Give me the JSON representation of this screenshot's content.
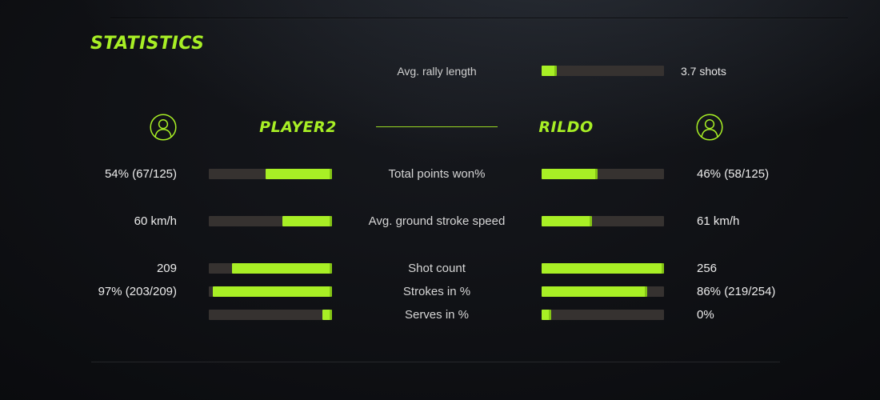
{
  "colors": {
    "accent": "#a8ef25",
    "bar_track": "#363230",
    "bar_fill": "#a8ef25",
    "bar_fill_cap": "#84c415",
    "background": "#0b0c0f"
  },
  "title": "STATISTICS",
  "rally": {
    "label": "Avg. rally length",
    "value": "3.7 shots",
    "fill_pct": 12.5
  },
  "players": {
    "left": {
      "name": "PLAYER2",
      "avatar": "person-circle-icon"
    },
    "right": {
      "name": "RILDO",
      "avatar": "person-circle-icon"
    }
  },
  "rows": [
    {
      "label": "Total points won%",
      "left_value": "54% (67/125)",
      "left_fill": 54,
      "right_value": "46% (58/125)",
      "right_fill": 46
    },
    {
      "label": "Avg. ground stroke speed",
      "left_value": "60 km/h",
      "left_fill": 40,
      "right_value": "61 km/h",
      "right_fill": 41
    },
    {
      "label": "Shot count",
      "left_value": "209",
      "left_fill": 81,
      "right_value": "256",
      "right_fill": 100
    },
    {
      "label": "Strokes in %",
      "left_value": "97% (203/209)",
      "left_fill": 97,
      "right_value": "86% (219/254)",
      "right_fill": 86
    },
    {
      "label": "Serves in %",
      "left_value": "",
      "left_fill": 8,
      "right_value": "0%",
      "right_fill": 8
    }
  ]
}
